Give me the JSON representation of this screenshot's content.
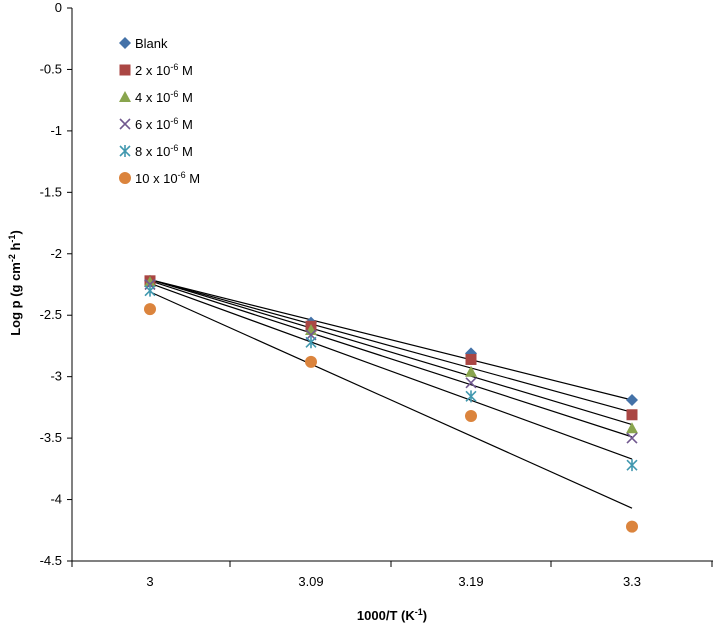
{
  "chart_data": {
    "type": "scatter",
    "xlabel": "1000/T (K",
    "xlabel_sup": "-1",
    "xlabel_tail": ")",
    "ylabel": "Log p (g cm",
    "ylabel_sup1": "-2",
    "ylabel_mid": " h",
    "ylabel_sup2": "-1",
    "ylabel_tail": ")",
    "x": [
      3,
      3.09,
      3.19,
      3.3
    ],
    "x_tick_labels": [
      "3",
      "3.09",
      "3.19",
      "3.3"
    ],
    "ylim": [
      -4.5,
      0
    ],
    "y_ticks": [
      0,
      -0.5,
      -1,
      -1.5,
      -2,
      -2.5,
      -3,
      -3.5,
      -4,
      -4.5
    ],
    "y_tick_labels": [
      "0",
      "-0.5",
      "-1",
      "-1.5",
      "-2",
      "-2.5",
      "-3",
      "-3.5",
      "-4",
      "-4.5"
    ],
    "grid": false,
    "legend_position": "top-left",
    "trendlines": true,
    "series": [
      {
        "name": "Blank",
        "label_base": "Blank",
        "label_sup": "",
        "label_tail": "",
        "marker": "diamond",
        "color": "#4472A8",
        "values": [
          -2.22,
          -2.56,
          -2.81,
          -3.19
        ],
        "trend": [
          -2.21,
          -3.19
        ]
      },
      {
        "name": "2 x 10-6 M",
        "label_base": "2 x 10",
        "label_sup": "-6",
        "label_tail": " M",
        "marker": "square",
        "color": "#AA4643",
        "values": [
          -2.22,
          -2.59,
          -2.86,
          -3.31
        ],
        "trend": [
          -2.21,
          -3.29
        ]
      },
      {
        "name": "4 x 10-6 M",
        "label_base": "4 x 10",
        "label_sup": "-6",
        "label_tail": " M",
        "marker": "triangle",
        "color": "#89A54E",
        "values": [
          -2.23,
          -2.62,
          -2.96,
          -3.42
        ],
        "trend": [
          -2.21,
          -3.39
        ]
      },
      {
        "name": "6 x 10-6 M",
        "label_base": "6 x 10",
        "label_sup": "-6",
        "label_tail": " M",
        "marker": "x",
        "color": "#71588F",
        "values": [
          -2.25,
          -2.66,
          -3.05,
          -3.5
        ],
        "trend": [
          -2.22,
          -3.49
        ]
      },
      {
        "name": "8 x 10-6 M",
        "label_base": "8 x 10",
        "label_sup": "-6",
        "label_tail": " M",
        "marker": "asterisk",
        "color": "#4198AF",
        "values": [
          -2.3,
          -2.72,
          -3.16,
          -3.72
        ],
        "trend": [
          -2.24,
          -3.67
        ]
      },
      {
        "name": "10 x 10-6 M",
        "label_base": "10 x 10",
        "label_sup": "-6",
        "label_tail": " M",
        "marker": "circle",
        "color": "#DB843D",
        "values": [
          -2.45,
          -2.88,
          -3.32,
          -4.22
        ],
        "trend": [
          -2.31,
          -4.07
        ]
      }
    ]
  }
}
